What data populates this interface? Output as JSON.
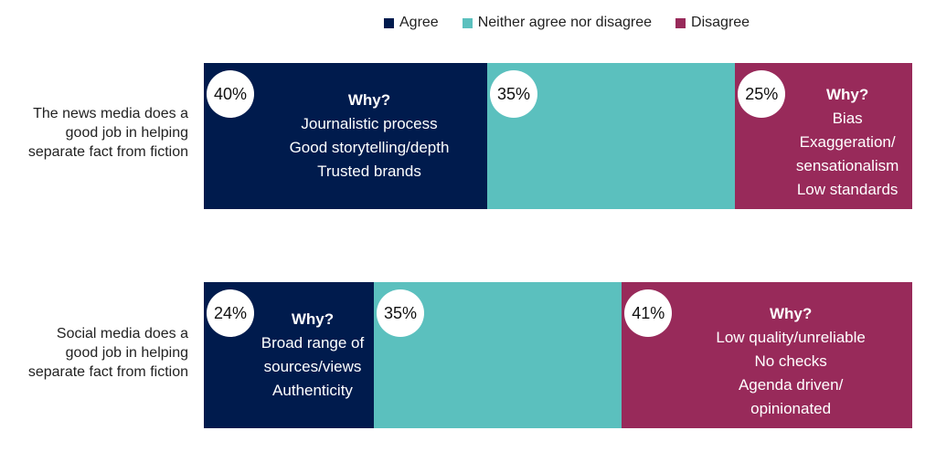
{
  "chart_data": {
    "type": "bar",
    "orientation": "horizontal-stacked-100",
    "title": "",
    "xlabel": "",
    "ylabel": "",
    "xlim": [
      0,
      100
    ],
    "grid": false,
    "legend_position": "top-center",
    "legend": [
      "Agree",
      "Neither agree nor disagree",
      "Disagree"
    ],
    "categories": [
      "The news media does a good job in helping separate fact from fiction",
      "Social media does a good job in helping separate fact from fiction"
    ],
    "series": [
      {
        "name": "Agree",
        "color": "#001b4d",
        "values": [
          40,
          24
        ]
      },
      {
        "name": "Neither agree nor disagree",
        "color": "#5bc0be",
        "values": [
          35,
          35
        ]
      },
      {
        "name": "Disagree",
        "color": "#982a5a",
        "values": [
          25,
          41
        ]
      }
    ],
    "data_labels": [
      [
        "40%",
        "35%",
        "25%"
      ],
      [
        "24%",
        "35%",
        "41%"
      ]
    ],
    "annotations": [
      {
        "row": 0,
        "series": "Agree",
        "title": "Why?",
        "lines": [
          "Journalistic process",
          "Good storytelling/depth",
          "Trusted brands"
        ]
      },
      {
        "row": 0,
        "series": "Disagree",
        "title": "Why?",
        "lines": [
          "Bias",
          "Exaggeration/",
          "sensationalism",
          "Low standards"
        ]
      },
      {
        "row": 1,
        "series": "Agree",
        "title": "Why?",
        "lines": [
          "Broad range of",
          "sources/views",
          "Authenticity"
        ]
      },
      {
        "row": 1,
        "series": "Disagree",
        "title": "Why?",
        "lines": [
          "Low quality/unreliable",
          "No checks",
          "Agenda driven/",
          "opinionated"
        ]
      }
    ]
  },
  "row_labels": [
    [
      "The news media does a",
      "good job in helping",
      "separate fact from fiction"
    ],
    [
      "Social media does a",
      "good job in helping",
      "separate fact from fiction"
    ]
  ]
}
